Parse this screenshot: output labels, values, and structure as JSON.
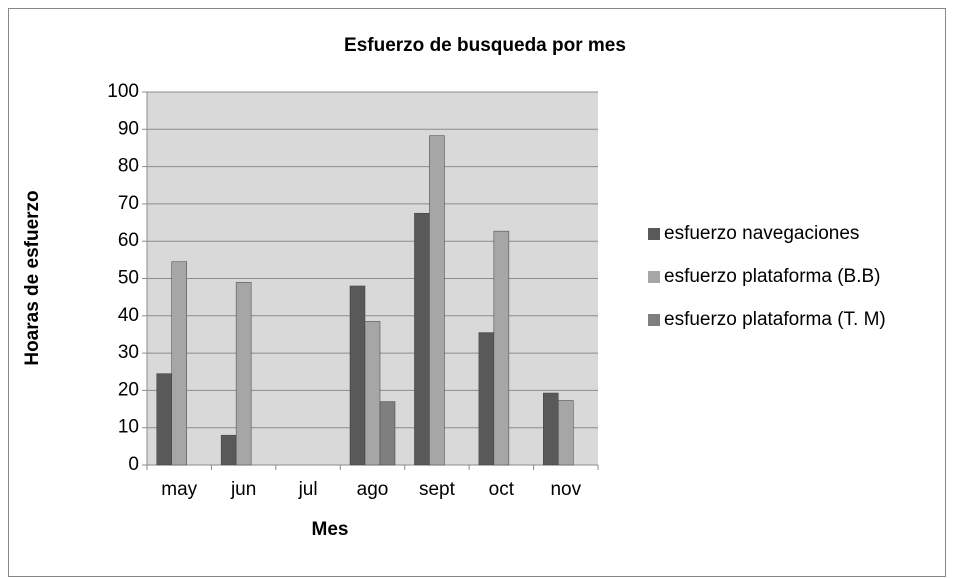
{
  "chart_data": {
    "type": "bar",
    "title": "Esfuerzo de busqueda por mes",
    "x_label": "Mes",
    "y_label": "Hoaras de esfuerzo",
    "categories": [
      "may",
      "jun",
      "jul",
      "ago",
      "sept",
      "oct",
      "nov"
    ],
    "series": [
      {
        "name": "esfuerzo navegaciones",
        "color": "#595959",
        "values": [
          24.5,
          8,
          null,
          48,
          67.5,
          35.5,
          19.3
        ]
      },
      {
        "name": "esfuerzo plataforma (B.B)",
        "color": "#a6a6a6",
        "values": [
          54.5,
          49,
          null,
          38.5,
          88.3,
          62.7,
          17.3
        ]
      },
      {
        "name": "esfuerzo plataforma (T. M)",
        "color": "#7f7f7f",
        "values": [
          null,
          null,
          null,
          17,
          null,
          null,
          null
        ]
      }
    ],
    "ylim": [
      0,
      100
    ],
    "yticks": [
      0,
      10,
      20,
      30,
      40,
      50,
      60,
      70,
      80,
      90,
      100
    ],
    "grid": true,
    "legend": "right"
  }
}
